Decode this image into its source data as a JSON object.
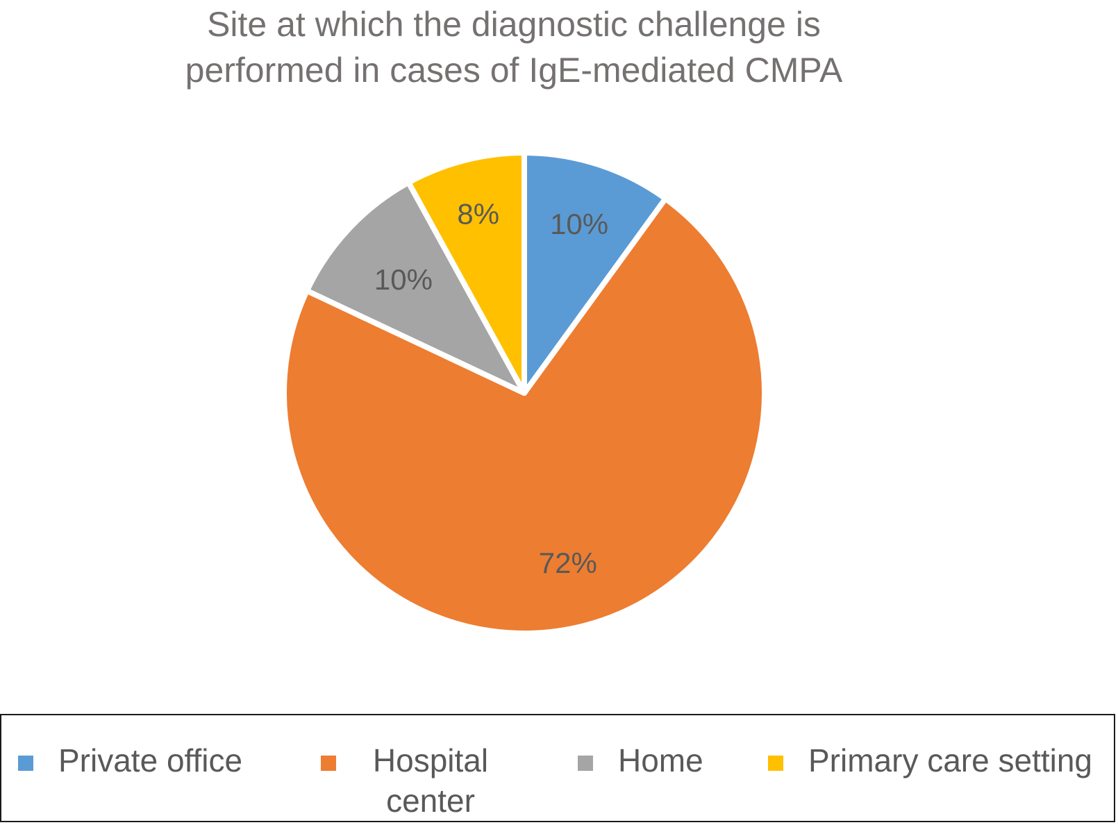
{
  "chart_data": {
    "type": "pie",
    "title": "Site at which the diagnostic challenge is performed in cases of IgE-mediated CMPA",
    "categories": [
      "Private office",
      "Hospital center",
      "Home",
      "Primary care setting"
    ],
    "values": [
      10,
      72,
      10,
      8
    ],
    "value_labels": [
      "10%",
      "72%",
      "10%",
      "8%"
    ],
    "colors": [
      "#5B9BD5",
      "#ED7D31",
      "#A5A5A5",
      "#FFC000"
    ],
    "start": "12 o'clock, clockwise",
    "legend": {
      "position": "bottom"
    }
  }
}
